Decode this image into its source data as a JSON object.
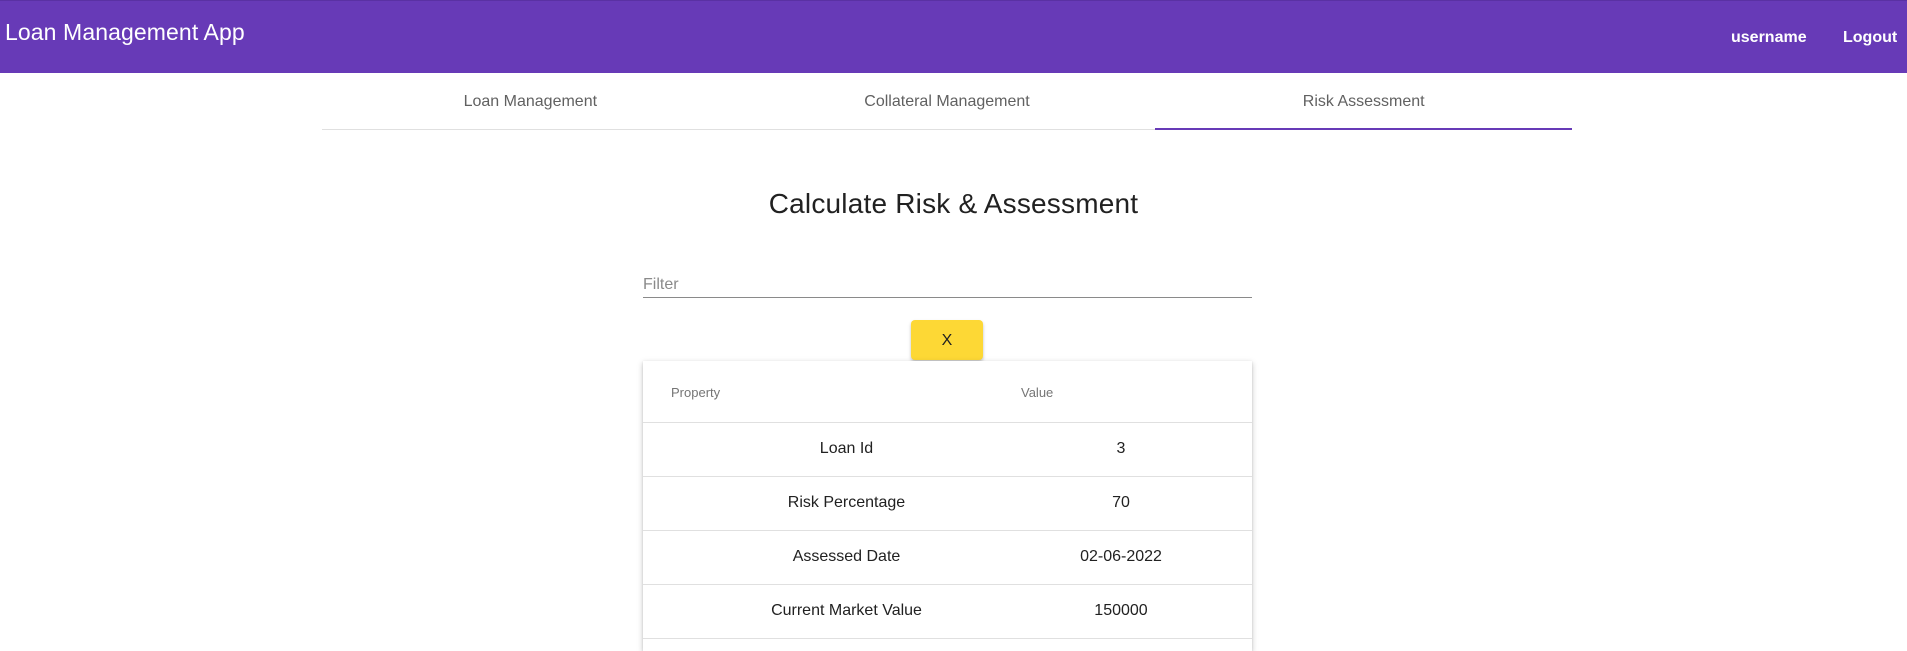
{
  "header": {
    "title": "Loan Management App",
    "username": "username",
    "logout": "Logout"
  },
  "tabs": [
    {
      "label": "Loan Management",
      "active": false
    },
    {
      "label": "Collateral Management",
      "active": false
    },
    {
      "label": "Risk Assessment",
      "active": true
    }
  ],
  "page": {
    "heading": "Calculate Risk & Assessment",
    "filter_placeholder": "Filter",
    "filter_value": "",
    "clear_button": "X"
  },
  "table": {
    "headers": {
      "property": "Property",
      "value": "Value"
    },
    "rows": [
      {
        "property": "Loan Id",
        "value": "3"
      },
      {
        "property": "Risk Percentage",
        "value": "70"
      },
      {
        "property": "Assessed Date",
        "value": "02-06-2022"
      },
      {
        "property": "Current Market Value",
        "value": "150000"
      }
    ]
  },
  "colors": {
    "primary": "#673ab7",
    "accent": "#fdd835"
  }
}
